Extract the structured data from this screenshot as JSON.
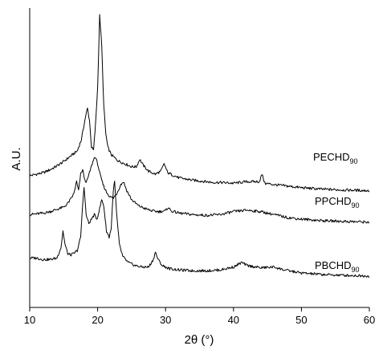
{
  "chart_data": {
    "type": "line",
    "xlabel": "2θ (°)",
    "ylabel": "A.U.",
    "xlim": [
      10,
      60
    ],
    "x_ticks": [
      10,
      20,
      30,
      40,
      50,
      60
    ],
    "y_ticks_labeled": false,
    "grid": false,
    "legend": "none",
    "series": [
      {
        "name": "PECHD",
        "name_subscript": "90",
        "color": "#000000",
        "points": [
          [
            10.0,
            0.88
          ],
          [
            11.0,
            0.89
          ],
          [
            12.0,
            0.9
          ],
          [
            13.0,
            0.92
          ],
          [
            14.0,
            0.945
          ],
          [
            15.0,
            0.975
          ],
          [
            16.0,
            1.01
          ],
          [
            17.0,
            1.045
          ],
          [
            17.6,
            1.12
          ],
          [
            18.2,
            1.27
          ],
          [
            18.5,
            1.33
          ],
          [
            18.8,
            1.25
          ],
          [
            19.1,
            1.07
          ],
          [
            19.4,
            1.05
          ],
          [
            19.7,
            1.23
          ],
          [
            20.0,
            1.47
          ],
          [
            20.3,
            1.95
          ],
          [
            20.6,
            1.75
          ],
          [
            20.9,
            1.35
          ],
          [
            21.2,
            1.16
          ],
          [
            21.5,
            1.07
          ],
          [
            22.0,
            1.02
          ],
          [
            23.0,
            0.98
          ],
          [
            24.0,
            0.96
          ],
          [
            25.0,
            0.94
          ],
          [
            25.7,
            0.94
          ],
          [
            26.2,
            0.99
          ],
          [
            26.7,
            0.95
          ],
          [
            27.5,
            0.91
          ],
          [
            28.5,
            0.89
          ],
          [
            29.3,
            0.91
          ],
          [
            29.8,
            0.96
          ],
          [
            30.3,
            0.9
          ],
          [
            32.0,
            0.865
          ],
          [
            34.0,
            0.85
          ],
          [
            37.0,
            0.835
          ],
          [
            38.0,
            0.835
          ],
          [
            40.0,
            0.83
          ],
          [
            42.0,
            0.84
          ],
          [
            43.8,
            0.84
          ],
          [
            44.2,
            0.89
          ],
          [
            44.6,
            0.83
          ],
          [
            46.0,
            0.82
          ],
          [
            48.0,
            0.81
          ],
          [
            50.0,
            0.8
          ],
          [
            53.0,
            0.79
          ],
          [
            56.0,
            0.785
          ],
          [
            60.0,
            0.78
          ]
        ]
      },
      {
        "name": "PPCHD",
        "name_subscript": "90",
        "color": "#000000",
        "points": [
          [
            10.0,
            0.62
          ],
          [
            11.0,
            0.625
          ],
          [
            12.0,
            0.63
          ],
          [
            13.0,
            0.64
          ],
          [
            14.0,
            0.655
          ],
          [
            15.0,
            0.67
          ],
          [
            15.5,
            0.69
          ],
          [
            16.0,
            0.72
          ],
          [
            16.5,
            0.76
          ],
          [
            16.9,
            0.84
          ],
          [
            17.2,
            0.78
          ],
          [
            17.5,
            0.89
          ],
          [
            17.8,
            0.92
          ],
          [
            18.1,
            0.85
          ],
          [
            18.4,
            0.84
          ],
          [
            18.8,
            0.9
          ],
          [
            19.2,
            0.96
          ],
          [
            19.6,
            1.01
          ],
          [
            20.0,
            0.96
          ],
          [
            20.4,
            0.88
          ],
          [
            20.8,
            0.82
          ],
          [
            21.3,
            0.77
          ],
          [
            21.8,
            0.74
          ],
          [
            22.3,
            0.73
          ],
          [
            22.8,
            0.76
          ],
          [
            23.4,
            0.82
          ],
          [
            23.8,
            0.84
          ],
          [
            24.3,
            0.78
          ],
          [
            25.0,
            0.72
          ],
          [
            26.0,
            0.68
          ],
          [
            27.0,
            0.66
          ],
          [
            28.0,
            0.645
          ],
          [
            29.0,
            0.64
          ],
          [
            30.0,
            0.645
          ],
          [
            30.4,
            0.67
          ],
          [
            30.8,
            0.645
          ],
          [
            32.0,
            0.63
          ],
          [
            34.0,
            0.62
          ],
          [
            36.0,
            0.615
          ],
          [
            38.0,
            0.62
          ],
          [
            40.0,
            0.64
          ],
          [
            42.0,
            0.65
          ],
          [
            44.0,
            0.64
          ],
          [
            46.0,
            0.62
          ],
          [
            48.0,
            0.6
          ],
          [
            50.0,
            0.59
          ],
          [
            53.0,
            0.58
          ],
          [
            56.0,
            0.575
          ],
          [
            60.0,
            0.57
          ]
        ]
      },
      {
        "name": "PBCHD",
        "name_subscript": "90",
        "color": "#000000",
        "points": [
          [
            10.0,
            0.33
          ],
          [
            11.0,
            0.33
          ],
          [
            12.0,
            0.32
          ],
          [
            13.0,
            0.32
          ],
          [
            14.0,
            0.33
          ],
          [
            14.6,
            0.4
          ],
          [
            14.9,
            0.51
          ],
          [
            15.2,
            0.42
          ],
          [
            15.6,
            0.36
          ],
          [
            16.0,
            0.35
          ],
          [
            16.5,
            0.36
          ],
          [
            17.0,
            0.38
          ],
          [
            17.5,
            0.47
          ],
          [
            17.8,
            0.69
          ],
          [
            18.0,
            0.81
          ],
          [
            18.3,
            0.62
          ],
          [
            18.7,
            0.56
          ],
          [
            19.1,
            0.59
          ],
          [
            19.5,
            0.62
          ],
          [
            19.9,
            0.59
          ],
          [
            20.3,
            0.66
          ],
          [
            20.6,
            0.72
          ],
          [
            20.9,
            0.68
          ],
          [
            21.3,
            0.51
          ],
          [
            21.7,
            0.47
          ],
          [
            22.0,
            0.53
          ],
          [
            22.3,
            0.78
          ],
          [
            22.5,
            0.84
          ],
          [
            22.8,
            0.62
          ],
          [
            23.2,
            0.42
          ],
          [
            23.7,
            0.34
          ],
          [
            24.5,
            0.3
          ],
          [
            25.5,
            0.28
          ],
          [
            26.5,
            0.27
          ],
          [
            27.5,
            0.27
          ],
          [
            28.2,
            0.32
          ],
          [
            28.5,
            0.37
          ],
          [
            28.9,
            0.32
          ],
          [
            29.5,
            0.28
          ],
          [
            30.5,
            0.26
          ],
          [
            32.0,
            0.25
          ],
          [
            34.0,
            0.245
          ],
          [
            36.0,
            0.245
          ],
          [
            38.0,
            0.25
          ],
          [
            40.0,
            0.27
          ],
          [
            41.2,
            0.3
          ],
          [
            42.0,
            0.28
          ],
          [
            44.0,
            0.265
          ],
          [
            46.0,
            0.27
          ],
          [
            47.5,
            0.25
          ],
          [
            50.0,
            0.23
          ],
          [
            53.0,
            0.22
          ],
          [
            56.0,
            0.215
          ],
          [
            60.0,
            0.21
          ]
        ]
      }
    ]
  }
}
